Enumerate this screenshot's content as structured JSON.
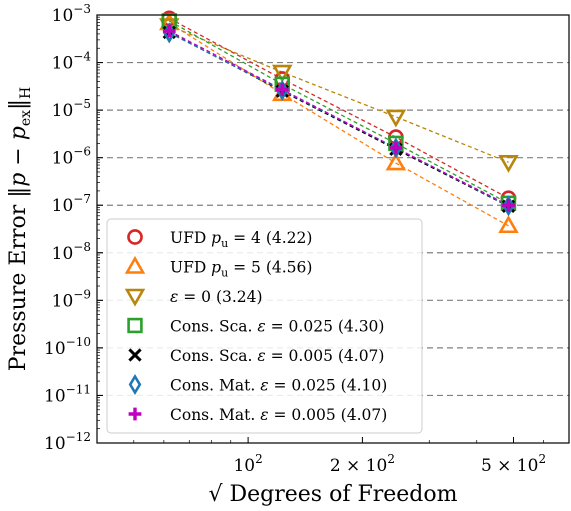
{
  "chart_data": {
    "type": "scatter",
    "xlabel": "√ Degrees of Freedom",
    "ylabel": "Pressure Error ‖p − p_ex‖_H",
    "ylabel_parts": {
      "prefix": "Pressure Error ",
      "norm_left": "‖",
      "p": "p",
      "minus": " − ",
      "p2": "p",
      "sub": "ex",
      "norm_right": "‖",
      "norm_sub": "H"
    },
    "x_scale": "log",
    "y_scale": "log",
    "xlim": [
      40,
      700
    ],
    "ylim": [
      1e-12,
      0.001
    ],
    "x_ticks": [
      {
        "value": 100,
        "label": "10",
        "sup": "2"
      },
      {
        "value": 200,
        "label": "2 × 10",
        "sup": "2"
      },
      {
        "value": 500,
        "label": "5 × 10",
        "sup": "2"
      }
    ],
    "y_ticks": [
      {
        "value": 0.001,
        "label": "10",
        "sup": "−3"
      },
      {
        "value": 0.0001,
        "label": "10",
        "sup": "−4"
      },
      {
        "value": 1e-05,
        "label": "10",
        "sup": "−5"
      },
      {
        "value": 1e-06,
        "label": "10",
        "sup": "−6"
      },
      {
        "value": 1e-07,
        "label": "10",
        "sup": "−7"
      },
      {
        "value": 1e-08,
        "label": "10",
        "sup": "−8"
      },
      {
        "value": 1e-09,
        "label": "10",
        "sup": "−9"
      },
      {
        "value": 1e-10,
        "label": "10",
        "sup": "−10"
      },
      {
        "value": 1e-11,
        "label": "10",
        "sup": "−11"
      },
      {
        "value": 1e-12,
        "label": "10",
        "sup": "−12"
      }
    ],
    "grid": "horizontal dashed",
    "legend_position": "bottom-left",
    "x": [
      62,
      123,
      245,
      485
    ],
    "series": [
      {
        "name": "UFD p_u = 4 (4.22)",
        "legend_parts": [
          "UFD ",
          "p",
          "u",
          " = 4 (4.22)"
        ],
        "color": "#d62728",
        "marker": "circle",
        "values": [
          0.00085,
          4.5e-05,
          2.7e-06,
          1.4e-07
        ]
      },
      {
        "name": "UFD p_u = 5 (4.56)",
        "legend_parts": [
          "UFD ",
          "p",
          "u",
          " = 5 (4.56)"
        ],
        "color": "#ff7f0e",
        "marker": "triangle-up",
        "values": [
          0.00068,
          2.2e-05,
          7.7e-07,
          3.7e-08
        ]
      },
      {
        "name": "ε = 0 (3.24)",
        "legend_parts": [
          "ε",
          " = 0 (3.24)"
        ],
        "color": "#b8860b",
        "marker": "triangle-down",
        "values": [
          0.0006,
          6.3e-05,
          7.2e-06,
          8e-07
        ]
      },
      {
        "name": "Cons. Sca. ε = 0.025 (4.30)",
        "legend_parts": [
          "Cons. Sca. ",
          "ε",
          " = 0.025 (4.30)"
        ],
        "color": "#2ca02c",
        "marker": "square",
        "values": [
          0.00075,
          3.5e-05,
          2e-06,
          1.1e-07
        ]
      },
      {
        "name": "Cons. Sca. ε = 0.005 (4.07)",
        "legend_parts": [
          "Cons. Sca. ",
          "ε",
          " = 0.005 (4.07)"
        ],
        "color": "#000000",
        "marker": "x",
        "values": [
          0.00043,
          2.5e-05,
          1.5e-06,
          9.5e-08
        ]
      },
      {
        "name": "Cons. Mat. ε = 0.025 (4.10)",
        "legend_parts": [
          "Cons. Mat. ",
          "ε",
          " = 0.025 (4.10)"
        ],
        "color": "#1f77b4",
        "marker": "diamond",
        "values": [
          0.00042,
          2.6e-05,
          1.6e-06,
          9.7e-08
        ]
      },
      {
        "name": "Cons. Mat. ε = 0.005 (4.07)",
        "legend_parts": [
          "Cons. Mat. ",
          "ε",
          " = 0.005 (4.07)"
        ],
        "color": "#bf00bf",
        "marker": "plus",
        "values": [
          0.00046,
          2.7e-05,
          1.6e-06,
          1e-07
        ]
      }
    ]
  }
}
